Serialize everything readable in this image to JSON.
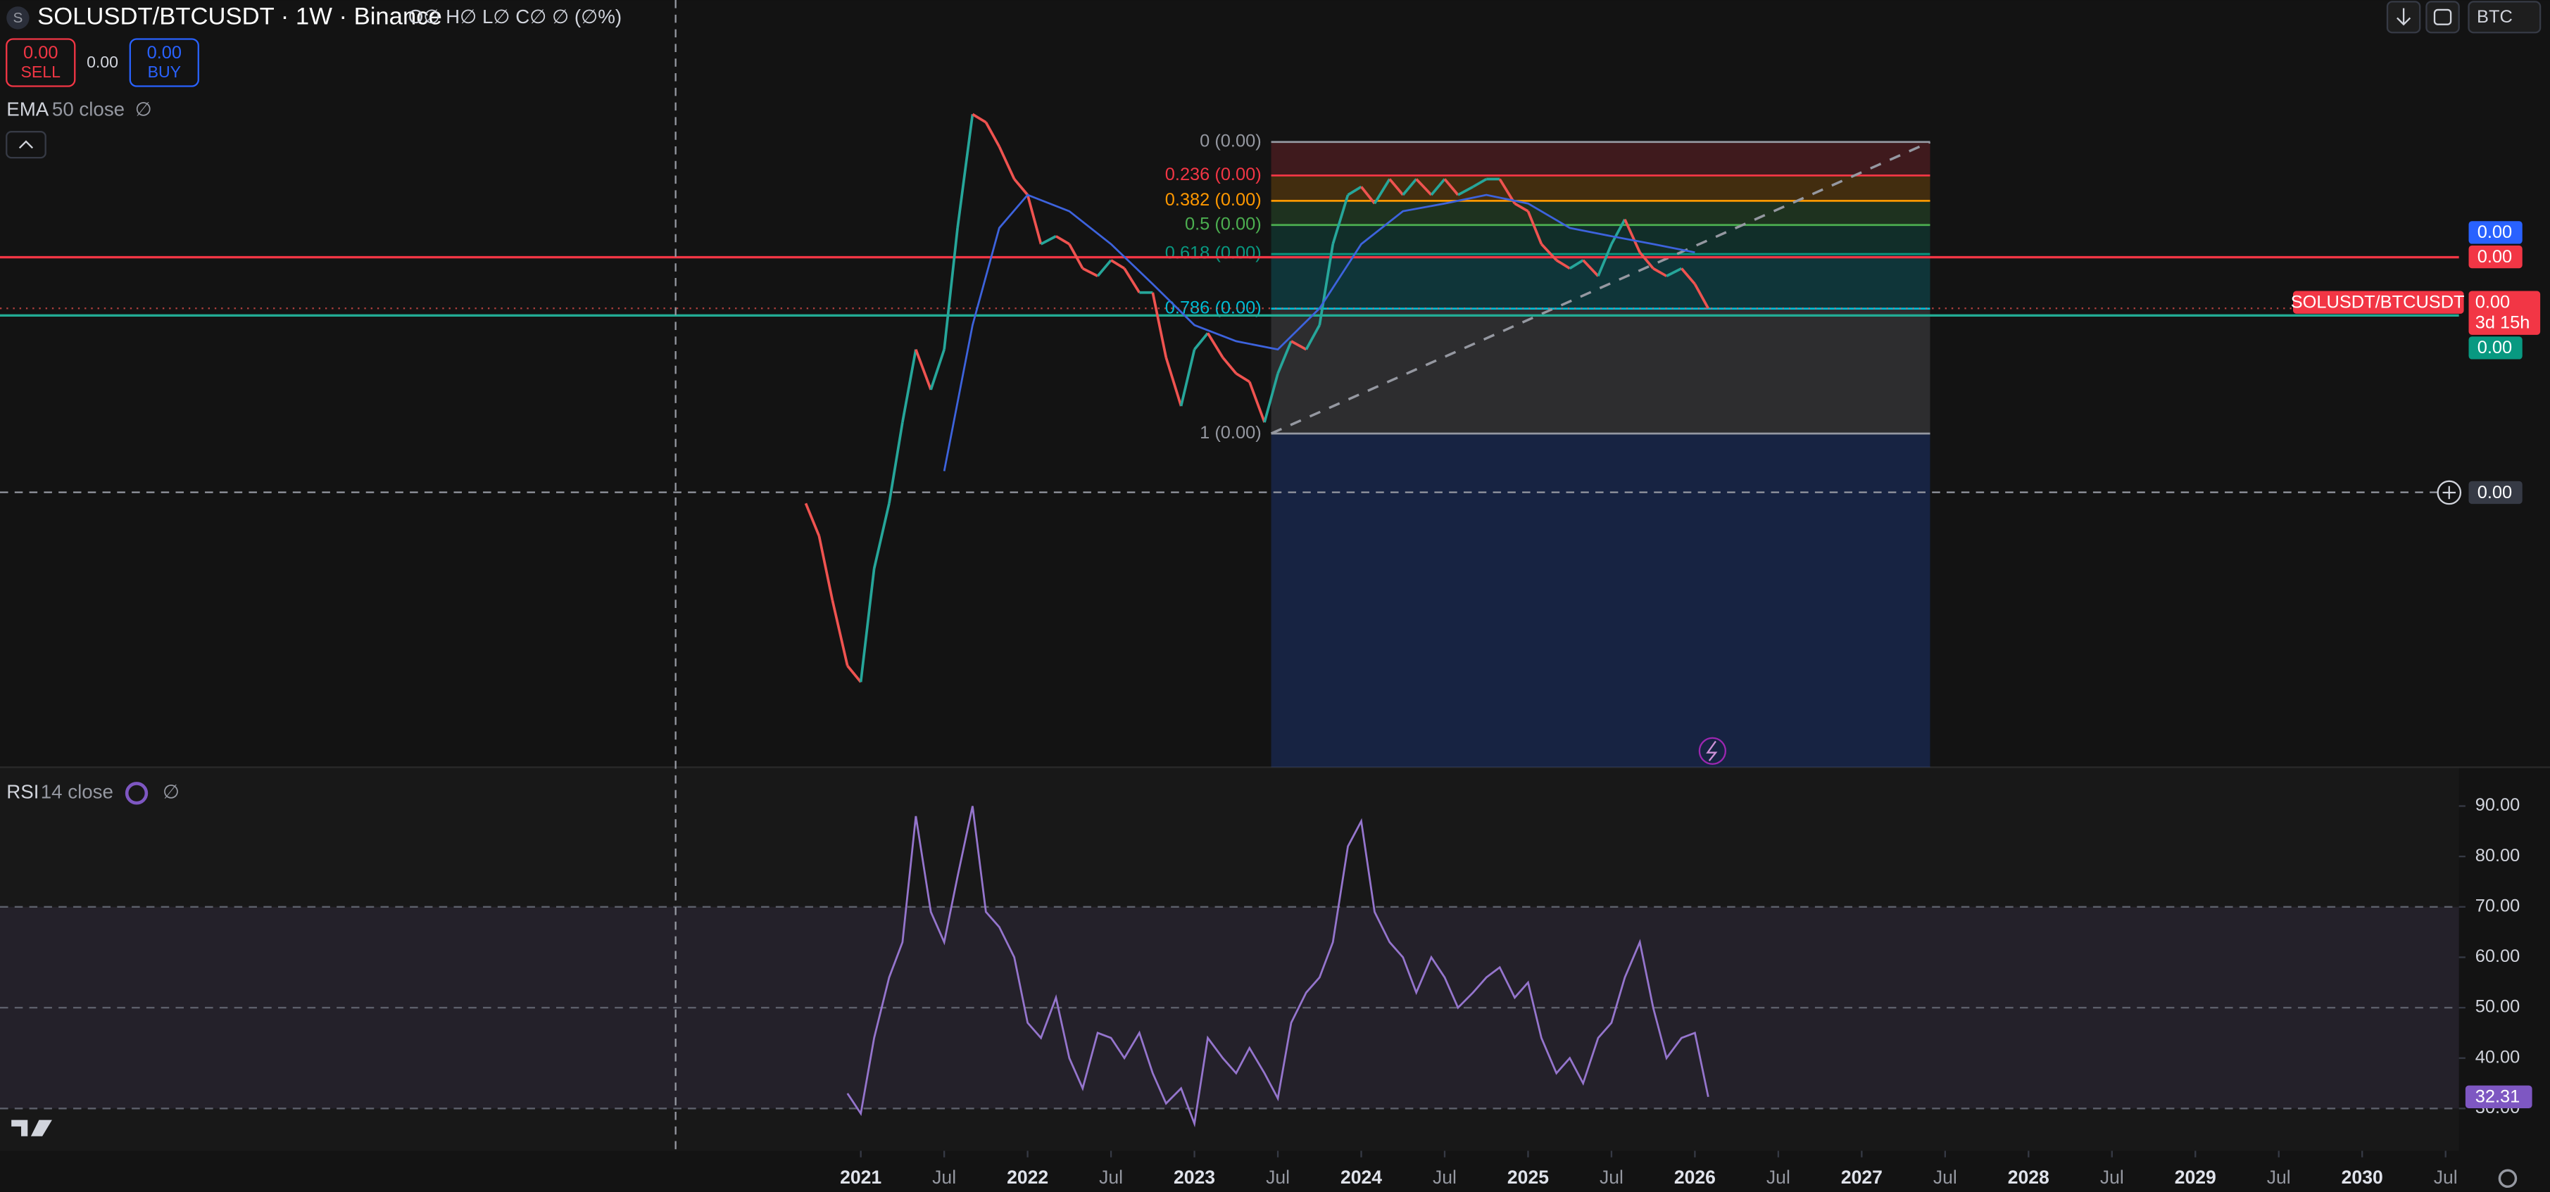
{
  "header": {
    "icon": "S"
  },
  "trade": {
    "sell_price": "0.00",
    "sell": "SELL",
    "spread": "0.00",
    "buy_price": "0.00",
    "buy": "BUY"
  },
  "toolbar": {
    "currency": "BTC"
  },
  "price_scale": {
    "fib_label": "0.00",
    "hline_label": "0.00",
    "last_label": "0.00",
    "countdown": "3d 15h",
    "green_label": "0.00",
    "crosshair_label": "0.00"
  },
  "chart_data": [
    {
      "type": "line",
      "title": "SOLUSDT/BTCUSDT · 1W · Binance",
      "ohlc_legend": "O∅ H∅ L∅ C∅ ∅ (∅%)",
      "log_scale": true,
      "xlim": [
        2015.84,
        2030.58
      ],
      "ylim": [
        4.7e-05,
        0.0086
      ],
      "series": [
        {
          "name": "SOLUSDT/BTCUSDT",
          "up_color": "#26a69a",
          "down_color": "#ef5350",
          "x": [
            2020.67,
            2020.75,
            2020.83,
            2020.92,
            2021.0,
            2021.08,
            2021.17,
            2021.25,
            2021.33,
            2021.42,
            2021.5,
            2021.58,
            2021.67,
            2021.75,
            2021.83,
            2021.92,
            2022.0,
            2022.08,
            2022.17,
            2022.25,
            2022.33,
            2022.42,
            2022.5,
            2022.58,
            2022.67,
            2022.75,
            2022.83,
            2022.92,
            2023.0,
            2023.08,
            2023.17,
            2023.25,
            2023.33,
            2023.42,
            2023.5,
            2023.58,
            2023.67,
            2023.75,
            2023.83,
            2023.92,
            2024.0,
            2024.08,
            2024.17,
            2024.25,
            2024.33,
            2024.42,
            2024.5,
            2024.58,
            2024.67,
            2024.75,
            2024.83,
            2024.92,
            2025.0,
            2025.08,
            2025.17,
            2025.25,
            2025.33,
            2025.42,
            2025.5,
            2025.58,
            2025.67,
            2025.75,
            2025.83,
            2025.92,
            2026.0,
            2026.08
          ],
          "values": [
            0.000282,
            0.000226,
            0.000146,
            9.36e-05,
            8.38e-05,
            0.000181,
            0.000282,
            0.000489,
            0.000802,
            0.00061,
            0.000802,
            0.00183,
            0.00396,
            0.00375,
            0.00318,
            0.00255,
            0.00229,
            0.00164,
            0.00173,
            0.00164,
            0.00139,
            0.00132,
            0.00147,
            0.00139,
            0.00118,
            0.00118,
            0.000759,
            0.000546,
            0.000802,
            0.000896,
            0.000759,
            0.000681,
            0.000644,
            0.000489,
            0.000681,
            0.000848,
            0.000802,
            0.000946,
            0.00164,
            0.00229,
            0.00242,
            0.00216,
            0.00255,
            0.00229,
            0.00255,
            0.00229,
            0.00255,
            0.00229,
            0.00242,
            0.00255,
            0.00255,
            0.00216,
            0.00205,
            0.00164,
            0.00147,
            0.00139,
            0.00147,
            0.00132,
            0.00164,
            0.00194,
            0.00155,
            0.00139,
            0.00132,
            0.00139,
            0.00125,
            0.00106
          ]
        },
        {
          "name": "EMA",
          "inputs": "50 close",
          "status": "∅",
          "color": "#3d63dd",
          "x": [
            2021.5,
            2021.67,
            2021.83,
            2022.0,
            2022.25,
            2022.5,
            2022.75,
            2023.0,
            2023.25,
            2023.5,
            2023.75,
            2024.0,
            2024.25,
            2024.5,
            2024.75,
            2025.0,
            2025.25,
            2025.5,
            2025.75,
            2026.0
          ],
          "values": [
            0.000351,
            0.000946,
            0.00183,
            0.00229,
            0.00205,
            0.00164,
            0.00125,
            0.000946,
            0.000848,
            0.000802,
            0.00106,
            0.00164,
            0.00205,
            0.00216,
            0.00229,
            0.00216,
            0.00183,
            0.00173,
            0.00164,
            0.00155
          ]
        }
      ],
      "fib": {
        "price_range": [
          0.000453,
          0.00328
        ],
        "x_range": [
          2023.46,
          2027.41
        ],
        "levels": [
          {
            "value": 0,
            "label": "0 (0.00)",
            "color": "#9598a1"
          },
          {
            "value": 0.236,
            "label": "0.236 (0.00)",
            "color": "#f23645"
          },
          {
            "value": 0.382,
            "label": "0.382 (0.00)",
            "color": "#ff9800"
          },
          {
            "value": 0.5,
            "label": "0.5 (0.00)",
            "color": "#4caf50"
          },
          {
            "value": 0.618,
            "label": "0.618 (0.00)",
            "color": "#089981"
          },
          {
            "value": 0.786,
            "label": "0.786 (0.00)",
            "color": "#00bcd4"
          },
          {
            "value": 1,
            "label": "1 (0.00)",
            "color": "#9598a1"
          }
        ]
      },
      "hlines": [
        {
          "value": 0.0015,
          "color": "#f23645"
        },
        {
          "value": 0.00101,
          "color": "#22ab94"
        }
      ],
      "crosshair": {
        "x": 2019.89,
        "y": 0.000304
      }
    },
    {
      "type": "line",
      "xlim": [
        2015.84,
        2030.58
      ],
      "ylim": [
        21.6,
        97.7
      ],
      "yticks": [
        {
          "value": 90,
          "label": "90.00"
        },
        {
          "value": 80,
          "label": "80.00"
        },
        {
          "value": 70,
          "label": "70.00"
        },
        {
          "value": 60,
          "label": "60.00"
        },
        {
          "value": 50,
          "label": "50.00"
        },
        {
          "value": 40,
          "label": "40.00"
        },
        {
          "value": 30,
          "label": "30.00"
        }
      ],
      "xticks": [
        2021,
        {
          "value": 2021.5,
          "label": "Jul"
        },
        2022,
        {
          "value": 2022.5,
          "label": "Jul"
        },
        2023,
        {
          "value": 2023.5,
          "label": "Jul"
        },
        2024,
        {
          "value": 2024.5,
          "label": "Jul"
        },
        2025,
        {
          "value": 2025.5,
          "label": "Jul"
        },
        2026,
        {
          "value": 2026.5,
          "label": "Jul"
        },
        2027,
        {
          "value": 2027.5,
          "label": "Jul"
        },
        2028,
        {
          "value": 2028.5,
          "label": "Jul"
        },
        2029,
        {
          "value": 2029.5,
          "label": "Jul"
        },
        2030,
        {
          "value": 2030.5,
          "label": "Jul"
        }
      ],
      "band": [
        30,
        70
      ],
      "levels": [
        30,
        50,
        70
      ],
      "series": [
        {
          "name": "RSI",
          "inputs": "14 close",
          "status": "∅",
          "color": "#9575cd",
          "x": [
            2020.92,
            2021.0,
            2021.08,
            2021.17,
            2021.25,
            2021.33,
            2021.42,
            2021.5,
            2021.58,
            2021.67,
            2021.75,
            2021.83,
            2021.92,
            2022.0,
            2022.08,
            2022.17,
            2022.25,
            2022.33,
            2022.42,
            2022.5,
            2022.58,
            2022.67,
            2022.75,
            2022.83,
            2022.92,
            2023.0,
            2023.08,
            2023.17,
            2023.25,
            2023.33,
            2023.42,
            2023.5,
            2023.58,
            2023.67,
            2023.75,
            2023.83,
            2023.92,
            2024.0,
            2024.08,
            2024.17,
            2024.25,
            2024.33,
            2024.42,
            2024.5,
            2024.58,
            2024.67,
            2024.75,
            2024.83,
            2024.92,
            2025.0,
            2025.08,
            2025.17,
            2025.25,
            2025.33,
            2025.42,
            2025.5,
            2025.58,
            2025.67,
            2025.75,
            2025.83,
            2025.92,
            2026.0,
            2026.08
          ],
          "values": [
            33,
            29,
            44,
            56,
            63,
            88,
            69,
            63,
            76,
            90,
            69,
            66,
            60,
            47,
            44,
            52,
            40,
            34,
            45,
            44,
            40,
            45,
            37,
            31,
            34,
            27,
            44,
            40,
            37,
            42,
            37,
            32,
            47,
            53,
            56,
            63,
            82,
            87,
            69,
            63,
            60,
            53,
            60,
            56,
            50,
            53,
            56,
            58,
            52,
            55,
            44,
            37,
            40,
            35,
            44,
            47,
            56,
            63,
            50,
            40,
            44,
            45,
            32.31
          ]
        }
      ]
    }
  ]
}
